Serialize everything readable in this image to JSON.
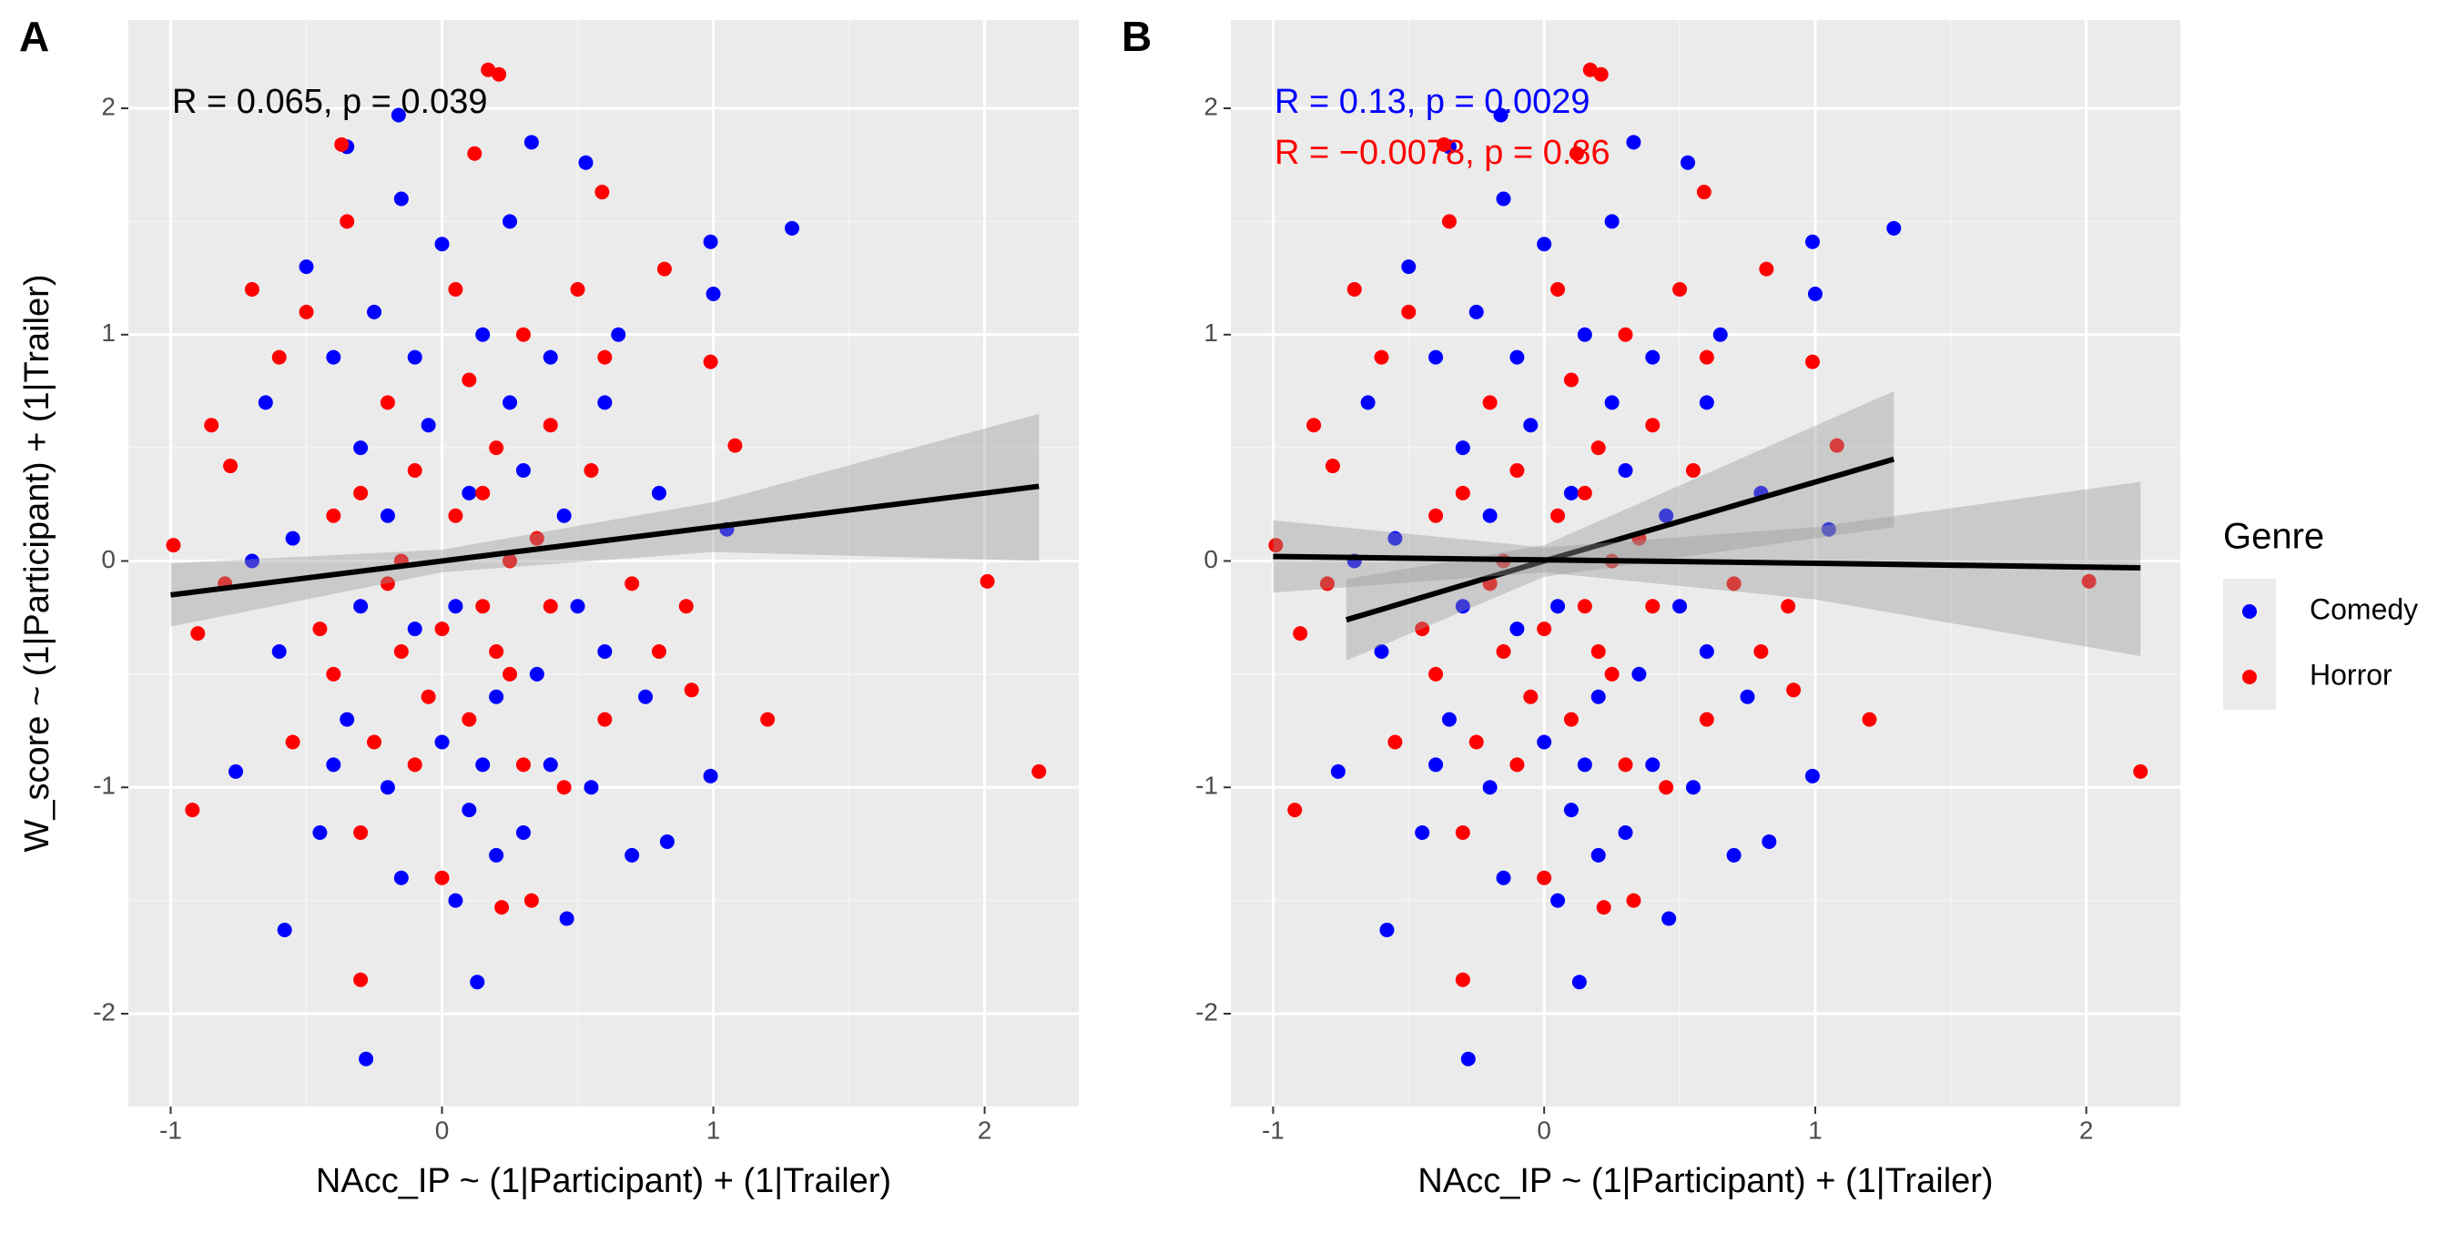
{
  "chart_data": [
    {
      "type": "scatter",
      "panel_label": "A",
      "annotations": [
        {
          "text": "R = 0.065, p = 0.039",
          "color": "#000000"
        }
      ],
      "x_label": "NAcc_IP ~ (1|Participant) + (1|Trailer)",
      "y_label": "W_score ~ (1|Participant) + (1|Trailer)",
      "xlim": [
        -1.156,
        2.347
      ],
      "ylim": [
        -2.41,
        2.39
      ],
      "xticks": [
        -1,
        0,
        1,
        2
      ],
      "yticks": [
        -2,
        -1,
        0,
        1,
        2
      ],
      "grid": true,
      "series": [
        {
          "name": "Comedy",
          "color": "#0000ff",
          "x": [
            1.29,
            0.99,
            1.0,
            0.99,
            -0.28,
            0.13,
            -0.58,
            0.46,
            -0.16,
            0.33,
            0.53,
            -0.76,
            1.05,
            0.83,
            0.7,
            -0.35,
            -0.5,
            -0.4,
            -0.3,
            -0.2,
            -0.1,
            0,
            0.1,
            0.2,
            0.3,
            0.4,
            0.5,
            0.6,
            -0.6,
            -0.45,
            -0.35,
            -0.25,
            -0.15,
            -0.05,
            0.05,
            0.15,
            0.25,
            0.35,
            0.45,
            0.55,
            0.65,
            0.75,
            -0.55,
            -0.65,
            -0.2,
            0.0,
            0.1,
            0.2,
            -0.1,
            -0.3,
            0.3,
            0.4,
            0.05,
            -0.4,
            0.6,
            0.8,
            -0.7,
            0.25,
            -0.15,
            0.15
          ],
          "values": [
            1.47,
            1.41,
            1.18,
            -0.95,
            -2.2,
            -1.86,
            -1.63,
            -1.58,
            1.97,
            1.85,
            1.76,
            -0.93,
            0.14,
            -1.24,
            -1.3,
            1.83,
            1.3,
            0.9,
            0.5,
            0.2,
            -0.3,
            -0.8,
            -1.1,
            -0.6,
            0.4,
            0.9,
            -0.2,
            0.7,
            -0.4,
            -1.2,
            -0.7,
            1.1,
            -1.4,
            0.6,
            -0.2,
            -0.9,
            1.5,
            -0.5,
            0.2,
            -1.0,
            1.0,
            -0.6,
            0.1,
            0.7,
            -1.0,
            1.4,
            0.3,
            -1.3,
            0.9,
            -0.2,
            -1.2,
            -0.9,
            -1.5,
            -0.9,
            -0.4,
            0.3,
            0.0,
            0.7,
            1.6,
            1.0
          ]
        },
        {
          "name": "Horror",
          "color": "#ff0000",
          "x": [
            2.2,
            2.01,
            1.2,
            -0.99,
            -0.92,
            -0.85,
            -0.9,
            0.17,
            0.21,
            1.08,
            0.99,
            0.82,
            0.33,
            -0.3,
            0.22,
            -0.37,
            0.12,
            -0.78,
            0.59,
            0.92,
            -0.5,
            -0.4,
            -0.3,
            -0.2,
            -0.1,
            0,
            0.1,
            0.2,
            0.3,
            0.4,
            0.5,
            0.6,
            -0.6,
            -0.45,
            -0.35,
            -0.25,
            -0.15,
            -0.05,
            0.05,
            0.15,
            0.25,
            0.35,
            0.45,
            0.55,
            0.7,
            0.8,
            -0.55,
            -0.7,
            -0.2,
            0.0,
            0.1,
            0.2,
            -0.1,
            -0.3,
            0.3,
            0.4,
            0.05,
            -0.4,
            0.6,
            0.9,
            -0.8,
            0.25,
            -0.15,
            0.15
          ],
          "values": [
            -0.93,
            -0.09,
            -0.7,
            0.07,
            -1.1,
            0.6,
            -0.32,
            2.17,
            2.15,
            0.51,
            0.88,
            1.29,
            -1.5,
            -1.85,
            -1.53,
            1.84,
            1.8,
            0.42,
            1.63,
            -0.57,
            1.1,
            -0.5,
            0.3,
            -0.1,
            0.4,
            -0.3,
            0.8,
            -0.4,
            -0.9,
            0.6,
            1.2,
            -0.7,
            0.9,
            -0.3,
            1.5,
            -0.8,
            0.0,
            -0.6,
            0.2,
            -0.2,
            -0.5,
            0.1,
            -1.0,
            0.4,
            -0.1,
            -0.4,
            -0.8,
            1.2,
            0.7,
            -1.4,
            -0.7,
            0.5,
            -0.9,
            -1.2,
            1.0,
            -0.2,
            1.2,
            0.2,
            0.9,
            -0.2,
            -0.1,
            0.0,
            -0.4,
            0.3
          ]
        }
      ],
      "fits": [
        {
          "color": "#000000",
          "x": [
            -1,
            0,
            1,
            2.2
          ],
          "values": [
            -0.15,
            0.0,
            0.15,
            0.33
          ],
          "lower": [
            -0.29,
            -0.05,
            0.04,
            0.0
          ],
          "upper": [
            -0.01,
            0.05,
            0.26,
            0.65
          ]
        }
      ]
    },
    {
      "type": "scatter",
      "panel_label": "B",
      "legend_title": "Genre",
      "annotations": [
        {
          "text": "R = 0.13, p = 0.0029",
          "color": "#0000ff"
        },
        {
          "text": "R = −0.0078, p = 0.86",
          "color": "#ff0000"
        }
      ],
      "x_label": "NAcc_IP ~ (1|Participant) + (1|Trailer)",
      "xlim": [
        -1.156,
        2.347
      ],
      "ylim": [
        -2.41,
        2.39
      ],
      "xticks": [
        -1,
        0,
        1,
        2
      ],
      "yticks": [
        -2,
        -1,
        0,
        1,
        2
      ],
      "grid": true,
      "fits": [
        {
          "color": "#000000",
          "x": [
            -0.73,
            0,
            1.29
          ],
          "values": [
            -0.26,
            0.0,
            0.45
          ],
          "lower": [
            -0.44,
            -0.07,
            0.15
          ],
          "upper": [
            -0.08,
            0.07,
            0.75
          ]
        },
        {
          "color": "#000000",
          "x": [
            -1,
            0,
            1,
            2.2
          ],
          "values": [
            0.02,
            0.005,
            -0.01,
            -0.03
          ],
          "lower": [
            -0.14,
            -0.05,
            -0.17,
            -0.42
          ],
          "upper": [
            0.18,
            0.06,
            0.15,
            0.35
          ]
        }
      ]
    }
  ]
}
